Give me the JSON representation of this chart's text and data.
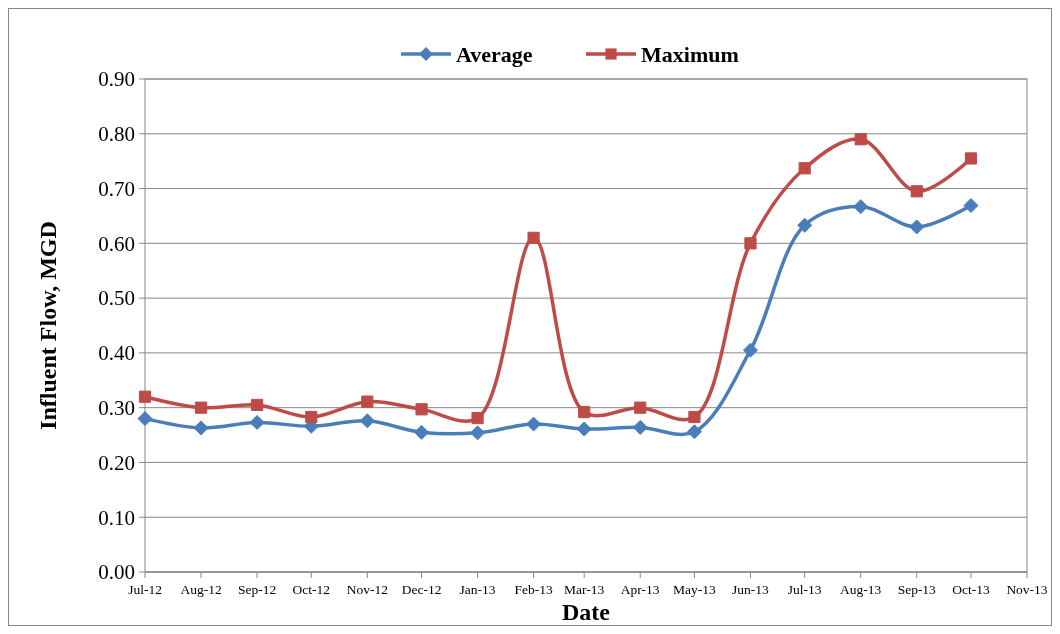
{
  "chart_data": {
    "type": "line",
    "xlabel": "Date",
    "ylabel": "Influent Flow, MGD",
    "x": [
      "2012-07",
      "2012-08",
      "2012-09",
      "2012-10",
      "2012-11",
      "2012-12",
      "2013-01",
      "2013-02",
      "2013-03",
      "2013-04",
      "2013-05",
      "2013-06",
      "2013-07",
      "2013-08",
      "2013-09",
      "2013-10"
    ],
    "series": [
      {
        "name": "Average",
        "color": "#4a7ebb",
        "marker": "diamond",
        "values": [
          0.28,
          0.263,
          0.273,
          0.266,
          0.276,
          0.255,
          0.254,
          0.27,
          0.261,
          0.264,
          0.256,
          0.405,
          0.633,
          0.667,
          0.63,
          0.669
        ]
      },
      {
        "name": "Maximum",
        "color": "#be4b48",
        "marker": "square",
        "values": [
          0.32,
          0.3,
          0.305,
          0.283,
          0.311,
          0.297,
          0.281,
          0.61,
          0.292,
          0.3,
          0.283,
          0.6,
          0.737,
          0.79,
          0.695,
          0.755
        ]
      }
    ],
    "xlim": [
      "2012-07",
      "2013-11"
    ],
    "xticks": [
      {
        "value": "2012-07",
        "label": "Jul-12"
      },
      {
        "value": "2012-08",
        "label": "Aug-12"
      },
      {
        "value": "2012-09",
        "label": "Sep-12"
      },
      {
        "value": "2012-10",
        "label": "Oct-12"
      },
      {
        "value": "2012-11",
        "label": "Nov-12"
      },
      {
        "value": "2012-12",
        "label": "Dec-12"
      },
      {
        "value": "2013-01",
        "label": "Jan-13"
      },
      {
        "value": "2013-02",
        "label": "Feb-13"
      },
      {
        "value": "2013-03",
        "label": "Mar-13"
      },
      {
        "value": "2013-04",
        "label": "Apr-13"
      },
      {
        "value": "2013-05",
        "label": "May-13"
      },
      {
        "value": "2013-06",
        "label": "Jun-13"
      },
      {
        "value": "2013-07",
        "label": "Jul-13"
      },
      {
        "value": "2013-08",
        "label": "Aug-13"
      },
      {
        "value": "2013-09",
        "label": "Sep-13"
      },
      {
        "value": "2013-10",
        "label": "Oct-13"
      },
      {
        "value": "2013-11",
        "label": "Nov-13"
      }
    ],
    "ylim": [
      0,
      0.9
    ],
    "yticks": [
      {
        "value": 0,
        "label": "0.00"
      },
      {
        "value": 0.1,
        "label": "0.10"
      },
      {
        "value": 0.2,
        "label": "0.20"
      },
      {
        "value": 0.3,
        "label": "0.30"
      },
      {
        "value": 0.4,
        "label": "0.40"
      },
      {
        "value": 0.5,
        "label": "0.50"
      },
      {
        "value": 0.6,
        "label": "0.60"
      },
      {
        "value": 0.7,
        "label": "0.70"
      },
      {
        "value": 0.8,
        "label": "0.80"
      },
      {
        "value": 0.9,
        "label": "0.90"
      }
    ],
    "grid": "y",
    "legend": "top",
    "line_style": "solid"
  }
}
